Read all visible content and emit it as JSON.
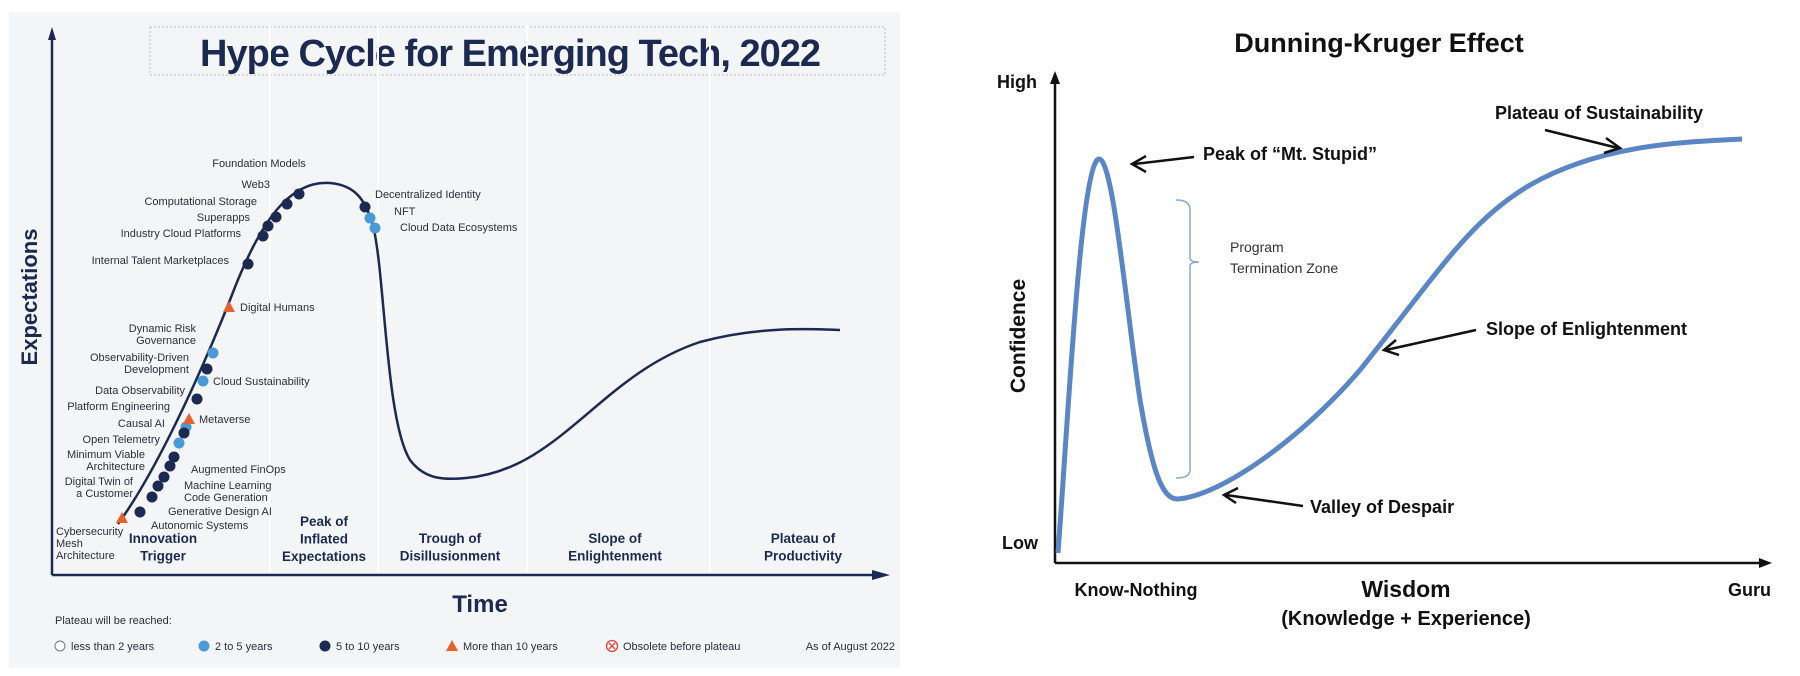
{
  "chart_data": [
    {
      "type": "line",
      "title": "Hype Cycle for Emerging Tech, 2022",
      "xlabel": "Time",
      "ylabel": "Expectations",
      "phases": [
        [
          "Innovation",
          "Trigger"
        ],
        [
          "Peak of",
          "Inflated",
          "Expectations"
        ],
        [
          "Trough of",
          "Disillusionment"
        ],
        [
          "Slope of",
          "Enlightenment"
        ],
        [
          "Plateau of",
          "Productivity"
        ]
      ],
      "items": [
        {
          "name": [
            "Foundation Models"
          ],
          "plateau": "5 to 10 years"
        },
        {
          "name": [
            "Web3"
          ],
          "plateau": "5 to 10 years"
        },
        {
          "name": [
            "Computational Storage"
          ],
          "plateau": "5 to 10 years"
        },
        {
          "name": [
            "Superapps"
          ],
          "plateau": "5 to 10 years"
        },
        {
          "name": [
            "Industry Cloud Platforms"
          ],
          "plateau": "5 to 10 years"
        },
        {
          "name": [
            "Internal Talent Marketplaces"
          ],
          "plateau": "5 to 10 years"
        },
        {
          "name": [
            "Digital Humans"
          ],
          "plateau": "More than 10 years"
        },
        {
          "name": [
            "Dynamic Risk",
            "Governance"
          ],
          "plateau": "2 to 5 years"
        },
        {
          "name": [
            "Observability-Driven",
            "Development"
          ],
          "plateau": "5 to 10 years"
        },
        {
          "name": [
            "Cloud Sustainability"
          ],
          "plateau": "2 to 5 years"
        },
        {
          "name": [
            "Data Observability"
          ],
          "plateau": "5 to 10 years"
        },
        {
          "name": [
            "Platform Engineering"
          ],
          "plateau": "2 to 5 years"
        },
        {
          "name": [
            "Metaverse"
          ],
          "plateau": "More than 10 years"
        },
        {
          "name": [
            "Causal AI"
          ],
          "plateau": "5 to 10 years"
        },
        {
          "name": [
            "Open Telemetry"
          ],
          "plateau": "2 to 5 years"
        },
        {
          "name": [
            "Minimum Viable",
            "Architecture"
          ],
          "plateau": "5 to 10 years"
        },
        {
          "name": [
            "Augmented FinOps"
          ],
          "plateau": "5 to 10 years"
        },
        {
          "name": [
            "Digital Twin of",
            "a Customer"
          ],
          "plateau": "5 to 10 years"
        },
        {
          "name": [
            "Machine Learning",
            "Code Generation"
          ],
          "plateau": "5 to 10 years"
        },
        {
          "name": [
            "Generative Design AI"
          ],
          "plateau": "5 to 10 years"
        },
        {
          "name": [
            "Autonomic Systems"
          ],
          "plateau": "5 to 10 years"
        },
        {
          "name": [
            "Cybersecurity",
            "Mesh",
            "Architecture"
          ],
          "plateau": "More than 10 years"
        },
        {
          "name": [
            "Decentralized Identity"
          ],
          "plateau": "5 to 10 years"
        },
        {
          "name": [
            "NFT"
          ],
          "plateau": "2 to 5 years"
        },
        {
          "name": [
            "Cloud Data Ecosystems"
          ],
          "plateau": "2 to 5 years"
        }
      ],
      "legend": {
        "title": "Plateau will be reached:",
        "entries": [
          "less than 2 years",
          "2 to 5 years",
          "5 to 10 years",
          "More than 10 years",
          "Obsolete before plateau"
        ]
      },
      "note": "As of August 2022",
      "colors": {
        "navy": "#1c2951",
        "blue": "#4a9ad8",
        "orange": "#e8602c",
        "red": "#e0463c"
      }
    },
    {
      "type": "line",
      "title": "Dunning-Kruger Effect",
      "ylabel": "Confidence",
      "yticks": [
        "High",
        "Low"
      ],
      "xticks": [
        "Know-Nothing",
        "Guru"
      ],
      "xlabel": [
        "Wisdom",
        "(Knowledge  +  Experience)"
      ],
      "annotations": [
        "Peak of “Mt. Stupid”",
        "Valley of Despair",
        "Slope of Enlightenment",
        "Plateau of Sustainability"
      ],
      "bracket_label": [
        "Program",
        "Termination Zone"
      ],
      "line_color": "#5b86c5"
    }
  ]
}
